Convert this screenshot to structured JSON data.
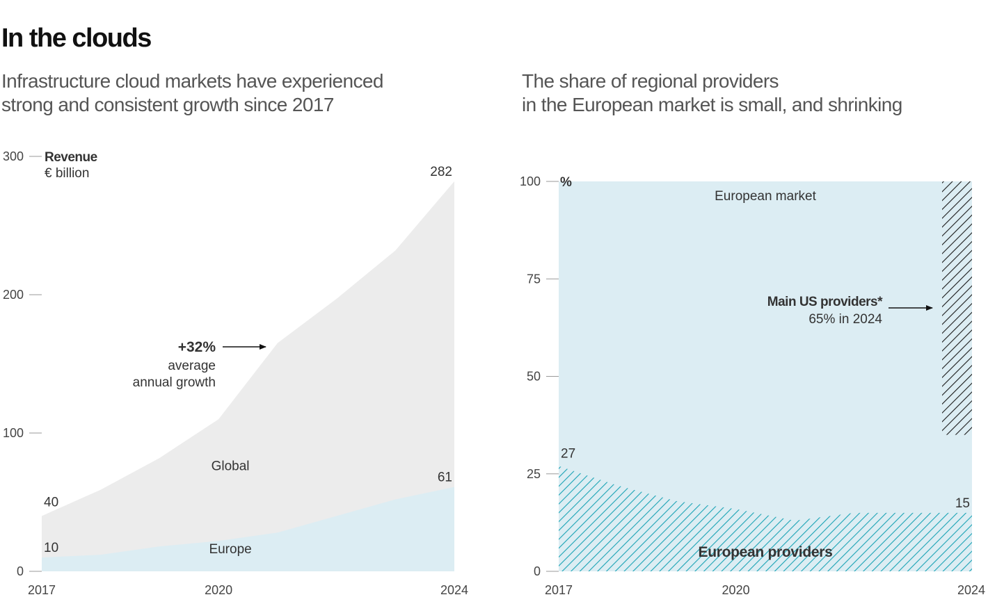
{
  "title": "In the clouds",
  "left_subtitle": [
    "Infrastructure cloud markets have experienced",
    "strong and consistent growth since 2017"
  ],
  "right_subtitle": [
    "The share of regional providers",
    "in the European market is small, and shrinking"
  ],
  "colors": {
    "global": "#ececec",
    "europe": "#dcedf3",
    "teal": "#1aa3b5",
    "dark": "#1a1a1a"
  },
  "chart_data": [
    {
      "type": "area",
      "title": "Infrastructure cloud markets have experienced strong and consistent growth since 2017",
      "ylabel": "Revenue",
      "yunit": "€ billion",
      "xlim": [
        2017,
        2024
      ],
      "ylim": [
        0,
        300
      ],
      "yticks": [
        0,
        100,
        200,
        300
      ],
      "xticks": [
        "2017",
        "2020",
        "2024"
      ],
      "x": [
        2017,
        2018,
        2019,
        2020,
        2021,
        2022,
        2023,
        2024
      ],
      "series": [
        {
          "name": "Global",
          "values": [
            40,
            59,
            82,
            110,
            165,
            197,
            232,
            282
          ]
        },
        {
          "name": "Europe",
          "values": [
            10,
            12,
            18,
            22,
            28,
            40,
            52,
            61
          ]
        }
      ],
      "value_labels": {
        "global_start": "40",
        "global_end": "282",
        "europe_start": "10",
        "europe_end": "61"
      },
      "annotation": {
        "value": "+32%",
        "lines": [
          "average",
          "annual growth"
        ]
      }
    },
    {
      "type": "area",
      "title": "The share of regional providers in the European market is small, and shrinking",
      "ylabel": "%",
      "xlim": [
        2017,
        2024
      ],
      "ylim": [
        0,
        100
      ],
      "yticks": [
        0,
        25,
        50,
        75,
        100
      ],
      "xticks": [
        "2017",
        "2020",
        "2024"
      ],
      "x": [
        2017,
        2018,
        2019,
        2020,
        2021,
        2022,
        2023,
        2024
      ],
      "series": [
        {
          "name": "European providers",
          "values": [
            27,
            22,
            18,
            16,
            13,
            15,
            15,
            15
          ]
        },
        {
          "name": "Main US providers*",
          "values": [
            65
          ],
          "x": [
            2024
          ]
        }
      ],
      "market_label": "European market",
      "value_labels": {
        "start": "27",
        "end": "15"
      },
      "annotation": {
        "bold": "Main US providers*",
        "sub": "65% in 2024"
      }
    }
  ]
}
